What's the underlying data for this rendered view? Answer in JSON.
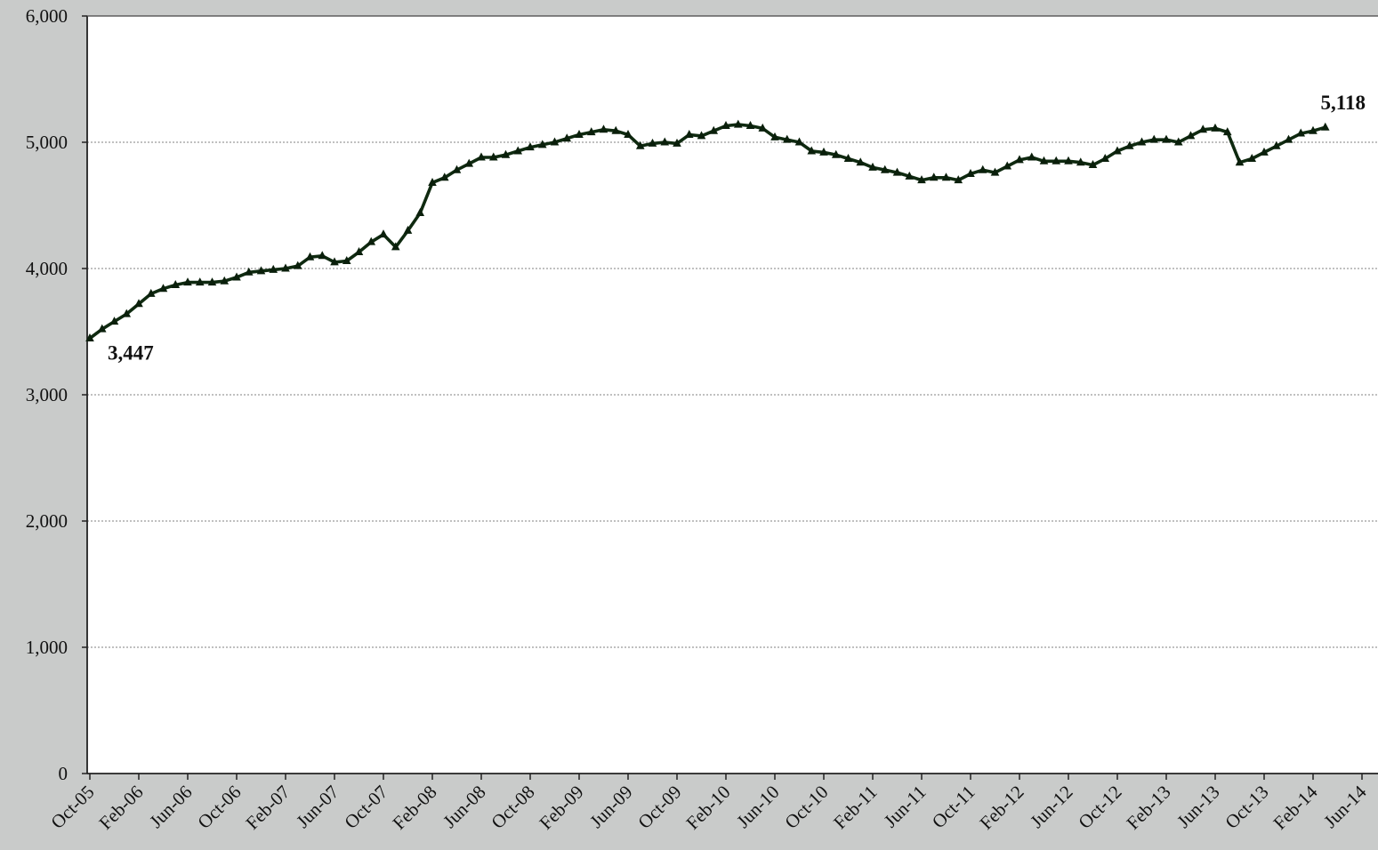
{
  "chart_data": {
    "type": "line",
    "title": "",
    "xlabel": "",
    "ylabel": "",
    "ylim": [
      0,
      6000
    ],
    "y_ticks": [
      0,
      1000,
      2000,
      3000,
      4000,
      5000,
      6000
    ],
    "y_tick_labels": [
      "0",
      "1,000",
      "2,000",
      "3,000",
      "4,000",
      "5,000",
      "6,000"
    ],
    "x_tick_labels": [
      "Oct-05",
      "Feb-06",
      "Jun-06",
      "Oct-06",
      "Feb-07",
      "Jun-07",
      "Oct-07",
      "Feb-08",
      "Jun-08",
      "Oct-08",
      "Feb-09",
      "Jun-09",
      "Oct-09",
      "Feb-10",
      "Jun-10",
      "Oct-10",
      "Feb-11",
      "Jun-11",
      "Oct-11",
      "Feb-12",
      "Jun-12",
      "Oct-12",
      "Feb-13",
      "Jun-13",
      "Oct-13",
      "Feb-14",
      "Jun-14"
    ],
    "x_start": "Oct-05",
    "x_end": "Jun-14",
    "grid": true,
    "line_color": "#0f2a10",
    "marker": "triangle",
    "series": [
      {
        "values": [
          3447,
          3520,
          3580,
          3640,
          3720,
          3800,
          3840,
          3870,
          3890,
          3890,
          3890,
          3900,
          3930,
          3970,
          3980,
          3990,
          4000,
          4020,
          4090,
          4100,
          4050,
          4060,
          4130,
          4210,
          4270,
          4170,
          4300,
          4440,
          4680,
          4720,
          4780,
          4830,
          4880,
          4880,
          4900,
          4930,
          4960,
          4980,
          5000,
          5030,
          5060,
          5080,
          5100,
          5090,
          5060,
          4970,
          4990,
          5000,
          4990,
          5060,
          5050,
          5090,
          5130,
          5140,
          5130,
          5110,
          5040,
          5020,
          5000,
          4930,
          4920,
          4900,
          4870,
          4840,
          4800,
          4780,
          4760,
          4730,
          4700,
          4720,
          4720,
          4700,
          4750,
          4780,
          4760,
          4810,
          4860,
          4880,
          4850,
          4850,
          4850,
          4840,
          4820,
          4870,
          4930,
          4970,
          5000,
          5020,
          5020,
          5000,
          5050,
          5100,
          5110,
          5080,
          4840,
          4870,
          4920,
          4970,
          5020,
          5070,
          5090,
          5118
        ]
      }
    ],
    "annotations": [
      {
        "text": "3,447",
        "index": 0,
        "value": 3447
      },
      {
        "text": "5,118",
        "index": 101,
        "value": 5118
      }
    ]
  }
}
